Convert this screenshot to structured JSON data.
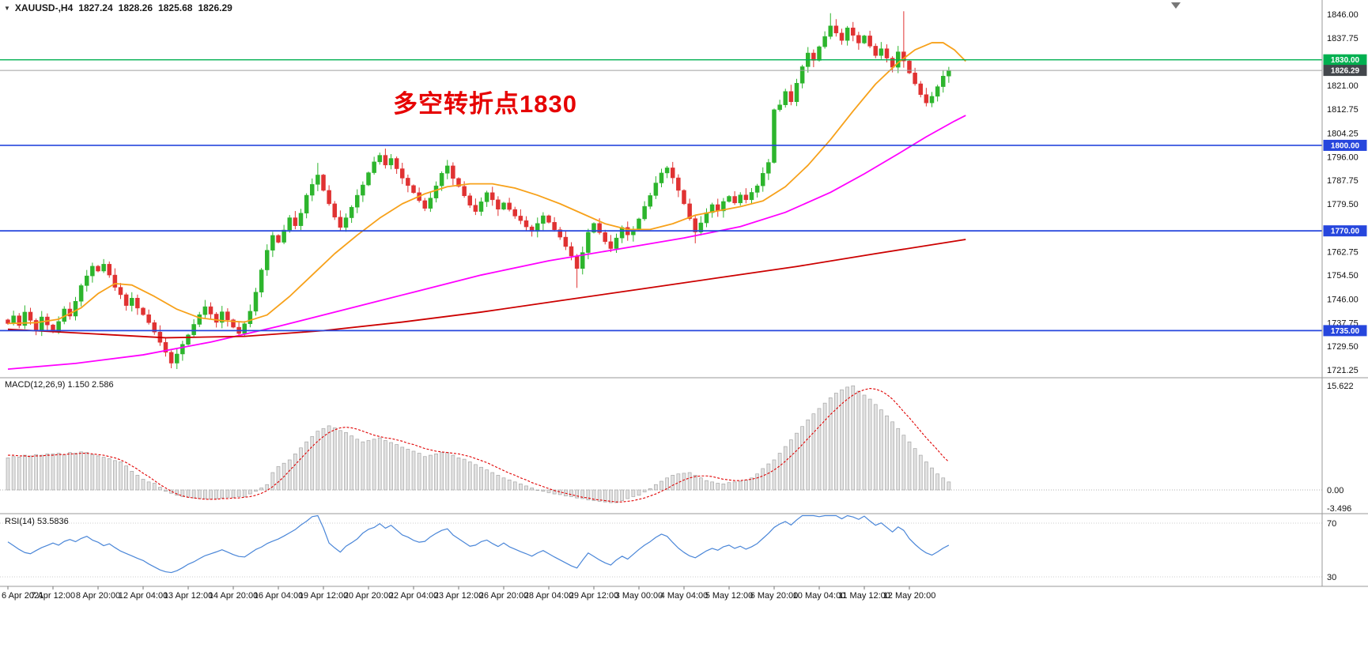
{
  "header": {
    "collapse_icon": "▼",
    "symbol_period": "XAUUSD-,H4",
    "open": "1827.24",
    "high": "1828.26",
    "low": "1825.68",
    "close": "1826.29"
  },
  "annotation": {
    "text": "多空转折点1830",
    "color": "#e60000"
  },
  "indicators": {
    "macd_label": "MACD(12,26,9) 1.150 2.586",
    "rsi_label": "RSI(14) 53.5836"
  },
  "price_axis": {
    "ticks": [
      "1846.00",
      "1837.75",
      "1821.00",
      "1812.75",
      "1804.25",
      "1796.00",
      "1787.75",
      "1779.50",
      "1762.75",
      "1754.50",
      "1746.00",
      "1737.75",
      "1729.50",
      "1721.25"
    ],
    "line_labels": [
      {
        "text": "1830.00",
        "price": 1830.0,
        "bg": "#00b050"
      },
      {
        "text": "1826.29",
        "price": 1826.29,
        "bg": "#43474c"
      },
      {
        "text": "1800.00",
        "price": 1800.0,
        "bg": "#2646dd"
      },
      {
        "text": "1770.00",
        "price": 1770.0,
        "bg": "#2646dd"
      },
      {
        "text": "1735.00",
        "price": 1735.0,
        "bg": "#2646dd"
      }
    ]
  },
  "macd_axis": [
    {
      "label": "15.622",
      "value": 15.622
    },
    {
      "label": "0.00",
      "value": 0
    },
    {
      "label": "-3.496",
      "value": -3.496
    }
  ],
  "rsi_axis": [
    {
      "label": "70",
      "value": 70
    },
    {
      "label": "30",
      "value": 30
    }
  ],
  "time_axis": [
    "6 Apr 2021",
    "7 Apr 12:00",
    "8 Apr 20:00",
    "12 Apr 04:00",
    "13 Apr 12:00",
    "14 Apr 20:00",
    "16 Apr 04:00",
    "19 Apr 12:00",
    "20 Apr 20:00",
    "22 Apr 04:00",
    "23 Apr 12:00",
    "26 Apr 20:00",
    "28 Apr 04:00",
    "29 Apr 12:00",
    "3 May 00:00",
    "4 May 04:00",
    "5 May 12:00",
    "6 May 20:00",
    "10 May 04:00",
    "11 May 12:00",
    "12 May 20:00"
  ],
  "chart_data": {
    "type": "candlestick",
    "symbol": "XAUUSD-",
    "timeframe": "H4",
    "title": "XAUUSD H4 candlestick chart with horizontal levels 1830/1800/1770/1735, three moving averages, MACD(12,26,9) and RSI(14)",
    "y_range": [
      1721.25,
      1846.0
    ],
    "current_price": 1826.29,
    "levels": [
      {
        "price": 1830.0,
        "color": "#00b050",
        "width": 1.4,
        "role": "resistance-turning-point"
      },
      {
        "price": 1826.29,
        "color": "#a0a0a0",
        "width": 1.0,
        "role": "current-price"
      },
      {
        "price": 1800.0,
        "color": "#2646dd",
        "width": 1.7,
        "role": "support"
      },
      {
        "price": 1770.0,
        "color": "#2646dd",
        "width": 1.7,
        "role": "support"
      },
      {
        "price": 1735.0,
        "color": "#2646dd",
        "width": 1.7,
        "role": "support"
      }
    ],
    "candles": {
      "up_color": "#2db52d",
      "down_color": "#e03232",
      "first_open": 1738.8,
      "closes": [
        1737.5,
        1740.2,
        1736.8,
        1741.5,
        1738.6,
        1735.2,
        1739.8,
        1737.0,
        1734.5,
        1738.2,
        1742.6,
        1740.1,
        1745.3,
        1750.8,
        1754.2,
        1757.6,
        1755.9,
        1758.3,
        1754.5,
        1750.2,
        1747.6,
        1743.8,
        1746.4,
        1742.9,
        1740.6,
        1737.8,
        1734.5,
        1730.9,
        1727.4,
        1723.6,
        1726.8,
        1730.2,
        1733.5,
        1737.2,
        1740.6,
        1743.4,
        1740.8,
        1737.9,
        1741.6,
        1738.8,
        1736.2,
        1734.0,
        1737.4,
        1741.8,
        1748.5,
        1756.3,
        1763.2,
        1768.4,
        1766.0,
        1770.3,
        1774.6,
        1771.8,
        1776.2,
        1782.5,
        1786.3,
        1789.6,
        1784.2,
        1779.5,
        1774.8,
        1771.2,
        1774.6,
        1778.3,
        1782.5,
        1786.1,
        1790.4,
        1794.2,
        1796.5,
        1793.1,
        1795.4,
        1791.8,
        1788.5,
        1785.9,
        1783.4,
        1780.6,
        1777.9,
        1781.5,
        1785.8,
        1790.2,
        1792.8,
        1788.4,
        1785.6,
        1782.3,
        1779.0,
        1776.8,
        1780.2,
        1783.4,
        1780.9,
        1777.6,
        1779.8,
        1777.5,
        1775.2,
        1773.6,
        1771.4,
        1769.8,
        1772.6,
        1775.3,
        1773.0,
        1770.4,
        1767.8,
        1764.5,
        1761.2,
        1756.8,
        1762.4,
        1769.5,
        1772.6,
        1769.4,
        1766.2,
        1763.8,
        1767.5,
        1771.2,
        1768.6,
        1770.4,
        1774.2,
        1778.6,
        1782.4,
        1786.8,
        1790.3,
        1792.1,
        1788.6,
        1784.2,
        1779.5,
        1774.3,
        1769.6,
        1772.8,
        1776.4,
        1779.2,
        1777.0,
        1780.3,
        1782.1,
        1779.8,
        1782.6,
        1780.9,
        1783.5,
        1785.8,
        1790.2,
        1794.0,
        1812.5,
        1814.2,
        1818.9,
        1815.3,
        1821.8,
        1827.6,
        1832.4,
        1829.8,
        1834.6,
        1838.2,
        1841.9,
        1839.4,
        1836.8,
        1841.2,
        1838.6,
        1835.9,
        1838.4,
        1834.8,
        1831.5,
        1833.9,
        1830.6,
        1827.4,
        1832.8,
        1829.6,
        1825.4,
        1821.6,
        1817.8,
        1814.9,
        1817.2,
        1820.6,
        1824.3,
        1826.29
      ],
      "wick_overrides": {
        "55": {
          "high": 3
        },
        "101": {
          "low": 5
        },
        "122": {
          "low": 3
        },
        "146": {
          "high": 3.5
        },
        "159": {
          "high": 13
        }
      }
    },
    "moving_averages": [
      {
        "name": "ma-fast",
        "color": "#f7a11a",
        "points": [
          [
            0,
            1737.5
          ],
          [
            5,
            1737.8
          ],
          [
            9,
            1739.0
          ],
          [
            13,
            1743.0
          ],
          [
            16,
            1748.0
          ],
          [
            19,
            1751.5
          ],
          [
            22,
            1751.0
          ],
          [
            26,
            1747.0
          ],
          [
            30,
            1742.5
          ],
          [
            34,
            1739.5
          ],
          [
            38,
            1738.5
          ],
          [
            42,
            1738.0
          ],
          [
            46,
            1740.5
          ],
          [
            50,
            1747.0
          ],
          [
            54,
            1754.5
          ],
          [
            58,
            1762.0
          ],
          [
            62,
            1768.5
          ],
          [
            66,
            1774.5
          ],
          [
            70,
            1779.5
          ],
          [
            74,
            1783.0
          ],
          [
            78,
            1785.5
          ],
          [
            82,
            1786.5
          ],
          [
            86,
            1786.5
          ],
          [
            90,
            1785.0
          ],
          [
            94,
            1782.5
          ],
          [
            98,
            1779.5
          ],
          [
            102,
            1776.0
          ],
          [
            106,
            1772.5
          ],
          [
            110,
            1770.5
          ],
          [
            114,
            1770.5
          ],
          [
            118,
            1772.5
          ],
          [
            122,
            1775.5
          ],
          [
            126,
            1777.0
          ],
          [
            130,
            1778.5
          ],
          [
            134,
            1780.5
          ],
          [
            138,
            1785.5
          ],
          [
            142,
            1793.0
          ],
          [
            146,
            1802.0
          ],
          [
            150,
            1812.0
          ],
          [
            154,
            1821.5
          ],
          [
            158,
            1829.0
          ],
          [
            161,
            1833.5
          ],
          [
            164,
            1836.0
          ],
          [
            166,
            1836.0
          ],
          [
            168,
            1833.5
          ],
          [
            170,
            1829.5
          ]
        ]
      },
      {
        "name": "ma-mid",
        "color": "#ff00ff",
        "points": [
          [
            0,
            1721.5
          ],
          [
            12,
            1723.5
          ],
          [
            24,
            1726.5
          ],
          [
            36,
            1731.0
          ],
          [
            48,
            1736.5
          ],
          [
            60,
            1742.5
          ],
          [
            72,
            1748.5
          ],
          [
            84,
            1754.5
          ],
          [
            96,
            1759.5
          ],
          [
            108,
            1763.5
          ],
          [
            120,
            1767.5
          ],
          [
            130,
            1771.5
          ],
          [
            138,
            1776.5
          ],
          [
            146,
            1783.5
          ],
          [
            152,
            1790.0
          ],
          [
            158,
            1797.0
          ],
          [
            163,
            1803.0
          ],
          [
            168,
            1808.5
          ],
          [
            170,
            1810.5
          ]
        ]
      },
      {
        "name": "ma-slow",
        "color": "#cc0000",
        "points": [
          [
            0,
            1735.5
          ],
          [
            14,
            1734.0
          ],
          [
            28,
            1732.5
          ],
          [
            42,
            1733.0
          ],
          [
            56,
            1735.0
          ],
          [
            70,
            1738.0
          ],
          [
            84,
            1741.5
          ],
          [
            98,
            1745.5
          ],
          [
            112,
            1749.5
          ],
          [
            126,
            1753.5
          ],
          [
            140,
            1757.5
          ],
          [
            154,
            1762.0
          ],
          [
            170,
            1767.0
          ]
        ]
      }
    ],
    "macd": {
      "params": "12,26,9",
      "display_values": [
        1.15,
        2.586
      ],
      "range": [
        -3.496,
        15.622
      ],
      "hist_fill": "#e2e2e2",
      "hist_stroke": "#a6a6a6",
      "signal_color": "#e00000",
      "histogram": [
        4.8,
        5.0,
        4.9,
        5.2,
        5.1,
        5.3,
        5.2,
        5.4,
        5.4,
        5.5,
        5.3,
        5.6,
        5.5,
        5.7,
        5.6,
        5.3,
        5.1,
        4.9,
        4.7,
        4.4,
        4.2,
        3.6,
        2.8,
        2.2,
        1.6,
        1.2,
        1.0,
        0.4,
        -0.2,
        -0.5,
        -0.8,
        -1.0,
        -1.1,
        -1.2,
        -1.3,
        -1.3,
        -1.4,
        -1.3,
        -1.2,
        -1.1,
        -1.1,
        -1.0,
        -1.0,
        -0.6,
        -0.2,
        0.3,
        0.8,
        2.6,
        3.5,
        4.0,
        4.5,
        5.4,
        6.3,
        7.2,
        8.0,
        8.8,
        9.2,
        9.6,
        9.3,
        8.9,
        8.6,
        8.1,
        7.6,
        7.2,
        7.4,
        7.6,
        7.8,
        7.4,
        7.1,
        6.8,
        6.4,
        6.1,
        5.8,
        5.5,
        5.0,
        5.2,
        5.4,
        5.6,
        5.6,
        5.2,
        4.8,
        4.6,
        4.2,
        3.8,
        3.4,
        3.0,
        2.6,
        2.2,
        1.8,
        1.5,
        1.2,
        0.9,
        0.6,
        0.3,
        0.0,
        -0.2,
        -0.4,
        -0.6,
        -0.7,
        -0.9,
        -1.0,
        -1.2,
        -1.3,
        -1.5,
        -1.6,
        -1.7,
        -1.8,
        -1.9,
        -1.9,
        -1.6,
        -1.3,
        -1.0,
        -0.8,
        -0.3,
        0.2,
        0.8,
        1.3,
        1.8,
        2.2,
        2.4,
        2.5,
        2.6,
        2.2,
        1.8,
        1.4,
        1.2,
        1.0,
        0.9,
        1.1,
        1.2,
        1.3,
        1.5,
        1.8,
        2.4,
        3.2,
        3.9,
        4.5,
        5.5,
        6.5,
        7.5,
        8.5,
        9.5,
        10.5,
        11.4,
        12.2,
        13.0,
        13.8,
        14.5,
        15.0,
        15.4,
        15.6,
        14.8,
        14.2,
        13.6,
        12.8,
        12.0,
        11.1,
        10.2,
        9.2,
        8.2,
        7.2,
        6.2,
        5.2,
        4.2,
        3.3,
        2.4,
        1.8,
        1.2
      ],
      "signal": [
        5.2,
        5.2,
        5.1,
        5.1,
        5.0,
        5.1,
        5.1,
        5.2,
        5.2,
        5.3,
        5.3,
        5.4,
        5.4,
        5.5,
        5.5,
        5.4,
        5.3,
        5.2,
        5.0,
        4.8,
        4.5,
        4.1,
        3.6,
        3.1,
        2.5,
        2.0,
        1.4,
        0.8,
        0.3,
        -0.2,
        -0.6,
        -0.9,
        -1.1,
        -1.2,
        -1.3,
        -1.4,
        -1.4,
        -1.4,
        -1.3,
        -1.3,
        -1.2,
        -1.2,
        -1.1,
        -1.0,
        -0.8,
        -0.5,
        -0.1,
        0.5,
        1.2,
        2.0,
        2.9,
        3.8,
        4.7,
        5.6,
        6.5,
        7.3,
        8.0,
        8.6,
        9.0,
        9.3,
        9.4,
        9.3,
        9.1,
        8.8,
        8.5,
        8.2,
        8.0,
        7.8,
        7.7,
        7.5,
        7.3,
        7.0,
        6.8,
        6.5,
        6.2,
        6.0,
        5.8,
        5.7,
        5.6,
        5.5,
        5.4,
        5.2,
        5.0,
        4.7,
        4.4,
        4.1,
        3.7,
        3.3,
        2.9,
        2.5,
        2.2,
        1.8,
        1.5,
        1.1,
        0.8,
        0.5,
        0.2,
        -0.1,
        -0.3,
        -0.5,
        -0.7,
        -0.9,
        -1.1,
        -1.2,
        -1.4,
        -1.5,
        -1.6,
        -1.7,
        -1.8,
        -1.8,
        -1.7,
        -1.6,
        -1.4,
        -1.2,
        -0.9,
        -0.6,
        -0.2,
        0.2,
        0.7,
        1.1,
        1.5,
        1.8,
        2.0,
        2.1,
        2.1,
        2.0,
        1.8,
        1.6,
        1.5,
        1.4,
        1.4,
        1.5,
        1.6,
        1.8,
        2.1,
        2.5,
        3.0,
        3.6,
        4.3,
        5.1,
        5.9,
        6.8,
        7.7,
        8.6,
        9.5,
        10.4,
        11.3,
        12.1,
        12.9,
        13.6,
        14.2,
        14.7,
        15.0,
        15.2,
        15.1,
        14.8,
        14.3,
        13.6,
        12.7,
        11.7,
        10.8,
        9.8,
        8.8,
        7.8,
        6.9,
        6.0,
        5.0,
        4.2
      ]
    },
    "rsi": {
      "period": 14,
      "current": 53.5836,
      "levels": [
        30,
        70
      ],
      "color": "#4a86d8",
      "values": [
        56.0,
        53.2,
        50.4,
        48.1,
        47.2,
        49.6,
        51.8,
        53.4,
        55.2,
        53.6,
        56.4,
        57.8,
        56.2,
        58.6,
        60.2,
        57.4,
        55.8,
        53.2,
        54.6,
        51.8,
        49.2,
        47.4,
        45.6,
        43.8,
        42.2,
        39.6,
        37.4,
        35.2,
        33.8,
        33.2,
        34.6,
        36.8,
        39.4,
        41.2,
        43.6,
        45.8,
        47.2,
        48.6,
        50.2,
        48.4,
        46.6,
        45.2,
        44.8,
        47.6,
        50.4,
        52.2,
        54.8,
        56.6,
        58.2,
        60.4,
        62.8,
        65.2,
        68.6,
        71.4,
        74.8,
        78.2,
        66.4,
        55.2,
        51.6,
        48.4,
        52.8,
        55.4,
        58.2,
        62.6,
        65.4,
        66.8,
        69.6,
        66.2,
        68.4,
        64.8,
        61.2,
        59.6,
        57.2,
        55.8,
        56.4,
        59.8,
        62.4,
        64.6,
        65.8,
        61.2,
        58.4,
        55.6,
        52.8,
        53.6,
        56.2,
        57.4,
        54.8,
        52.6,
        55.2,
        52.4,
        50.6,
        48.8,
        47.2,
        45.4,
        47.8,
        49.6,
        47.2,
        44.8,
        42.6,
        40.4,
        38.2,
        36.6,
        42.4,
        47.8,
        45.2,
        42.6,
        40.4,
        38.8,
        42.6,
        45.4,
        43.2,
        46.8,
        50.4,
        53.6,
        56.2,
        59.4,
        61.8,
        60.2,
        55.6,
        51.4,
        48.2,
        45.6,
        44.2,
        46.8,
        49.4,
        51.2,
        49.8,
        52.4,
        53.6,
        51.2,
        52.8,
        50.6,
        52.4,
        54.8,
        58.6,
        62.4,
        66.8,
        69.4,
        71.2,
        68.6,
        72.4,
        75.8,
        77.0,
        76.2,
        74.8,
        76.4,
        77.2,
        75.6,
        73.2,
        76.4,
        74.6,
        72.8,
        75.2,
        71.6,
        68.4,
        70.2,
        66.8,
        63.4,
        67.2,
        64.6,
        58.4,
        54.2,
        50.6,
        47.8,
        46.2,
        48.6,
        51.4,
        53.58
      ]
    }
  }
}
